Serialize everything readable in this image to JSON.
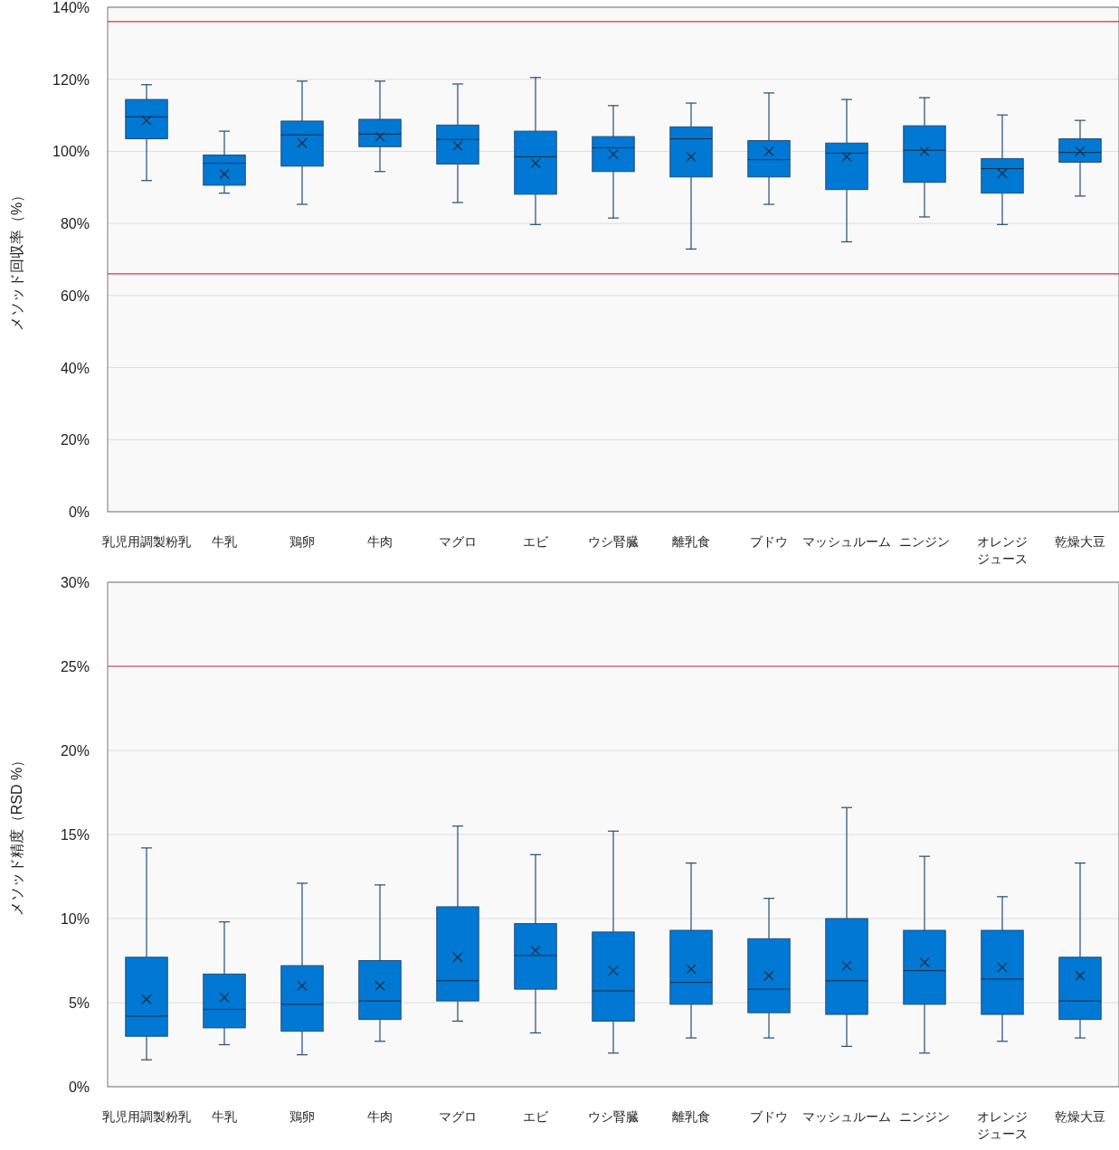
{
  "chart_data": [
    {
      "type": "box",
      "ylabel": "メソッド回収率（%）",
      "categories": [
        "乳児用調製粉乳",
        "牛乳",
        "鶏卵",
        "牛肉",
        "マグロ",
        "エビ",
        "ウシ腎臓",
        "離乳食",
        "ブドウ",
        "マッシュルーム",
        "ニンジン",
        "オレンジジュース",
        "乾燥大豆"
      ],
      "color": "#0078d4",
      "ylim": [
        0,
        140
      ],
      "yticks": [
        {
          "value": 0,
          "label": "0%"
        },
        {
          "value": 20,
          "label": "20%"
        },
        {
          "value": 40,
          "label": "40%"
        },
        {
          "value": 60,
          "label": "60%"
        },
        {
          "value": 80,
          "label": "80%"
        },
        {
          "value": 100,
          "label": "100%"
        },
        {
          "value": 120,
          "label": "120%"
        },
        {
          "value": 140,
          "label": "140%"
        }
      ],
      "grid": "y",
      "ref_lines": [
        {
          "axis": "y",
          "value": 136,
          "color": "#d13438"
        },
        {
          "axis": "y",
          "value": 66,
          "color": "#d13438"
        }
      ],
      "boxes": [
        {
          "low": 91.9,
          "q1": 103.5,
          "median": 109.6,
          "q3": 114.4,
          "high": 118.5,
          "mean": 108.6
        },
        {
          "low": 88.4,
          "q1": 90.6,
          "median": 96.7,
          "q3": 99.0,
          "high": 105.6,
          "mean": 93.7
        },
        {
          "low": 85.3,
          "q1": 95.9,
          "median": 104.6,
          "q3": 108.4,
          "high": 119.5,
          "mean": 102.3
        },
        {
          "low": 94.4,
          "q1": 101.3,
          "median": 104.8,
          "q3": 108.9,
          "high": 119.5,
          "mean": 104.1
        },
        {
          "low": 85.8,
          "q1": 96.5,
          "median": 103.3,
          "q3": 107.3,
          "high": 118.7,
          "mean": 101.5
        },
        {
          "low": 79.7,
          "q1": 88.1,
          "median": 98.5,
          "q3": 105.6,
          "high": 120.5,
          "mean": 96.7
        },
        {
          "low": 81.5,
          "q1": 94.4,
          "median": 101.0,
          "q3": 104.1,
          "high": 112.7,
          "mean": 99.2
        },
        {
          "low": 72.9,
          "q1": 92.9,
          "median": 103.5,
          "q3": 106.8,
          "high": 113.4,
          "mean": 98.5
        },
        {
          "low": 85.3,
          "q1": 92.9,
          "median": 97.7,
          "q3": 103.0,
          "high": 116.2,
          "mean": 100.0
        },
        {
          "low": 74.9,
          "q1": 89.4,
          "median": 99.5,
          "q3": 102.3,
          "high": 114.4,
          "mean": 98.5
        },
        {
          "low": 81.8,
          "q1": 91.4,
          "median": 100.3,
          "q3": 107.1,
          "high": 114.9,
          "mean": 100.0
        },
        {
          "low": 79.7,
          "q1": 88.4,
          "median": 95.2,
          "q3": 98.0,
          "high": 110.1,
          "mean": 93.9
        },
        {
          "low": 87.6,
          "q1": 97.0,
          "median": 99.7,
          "q3": 103.5,
          "high": 108.6,
          "mean": 100.0
        }
      ]
    },
    {
      "type": "box",
      "ylabel": "メソッド精度（RSD %）",
      "categories": [
        "乳児用調製粉乳",
        "牛乳",
        "鶏卵",
        "牛肉",
        "マグロ",
        "エビ",
        "ウシ腎臓",
        "離乳食",
        "ブドウ",
        "マッシュルーム",
        "ニンジン",
        "オレンジジュース",
        "乾燥大豆"
      ],
      "color": "#0078d4",
      "ylim": [
        0,
        30
      ],
      "yticks": [
        {
          "value": 0,
          "label": "0%"
        },
        {
          "value": 5,
          "label": "5%"
        },
        {
          "value": 10,
          "label": "10%"
        },
        {
          "value": 15,
          "label": "15%"
        },
        {
          "value": 20,
          "label": "20%"
        },
        {
          "value": 25,
          "label": "25%"
        },
        {
          "value": 30,
          "label": "30%"
        }
      ],
      "grid": "y",
      "ref_lines": [
        {
          "axis": "y",
          "value": 25,
          "color": "#d13438"
        }
      ],
      "boxes": [
        {
          "low": 1.6,
          "q1": 3.0,
          "median": 4.2,
          "q3": 7.7,
          "high": 14.2,
          "mean": 5.2
        },
        {
          "low": 2.5,
          "q1": 3.5,
          "median": 4.6,
          "q3": 6.7,
          "high": 9.8,
          "mean": 5.3
        },
        {
          "low": 1.9,
          "q1": 3.3,
          "median": 4.9,
          "q3": 7.2,
          "high": 12.1,
          "mean": 6.0
        },
        {
          "low": 2.7,
          "q1": 4.0,
          "median": 5.1,
          "q3": 7.5,
          "high": 12.0,
          "mean": 6.0
        },
        {
          "low": 3.9,
          "q1": 5.1,
          "median": 6.3,
          "q3": 10.7,
          "high": 15.5,
          "mean": 7.7
        },
        {
          "low": 3.2,
          "q1": 5.8,
          "median": 7.8,
          "q3": 9.7,
          "high": 13.8,
          "mean": 8.1
        },
        {
          "low": 2.0,
          "q1": 3.9,
          "median": 5.7,
          "q3": 9.2,
          "high": 15.2,
          "mean": 6.9
        },
        {
          "low": 2.9,
          "q1": 4.9,
          "median": 6.2,
          "q3": 9.3,
          "high": 13.3,
          "mean": 7.0
        },
        {
          "low": 2.9,
          "q1": 4.4,
          "median": 5.8,
          "q3": 8.8,
          "high": 11.2,
          "mean": 6.6
        },
        {
          "low": 2.4,
          "q1": 4.3,
          "median": 6.3,
          "q3": 10.0,
          "high": 16.6,
          "mean": 7.2
        },
        {
          "low": 2.0,
          "q1": 4.9,
          "median": 6.9,
          "q3": 9.3,
          "high": 13.7,
          "mean": 7.4
        },
        {
          "low": 2.7,
          "q1": 4.3,
          "median": 6.4,
          "q3": 9.3,
          "high": 11.3,
          "mean": 7.1
        },
        {
          "low": 2.9,
          "q1": 4.0,
          "median": 5.1,
          "q3": 7.7,
          "high": 13.3,
          "mean": 6.6
        }
      ]
    }
  ]
}
